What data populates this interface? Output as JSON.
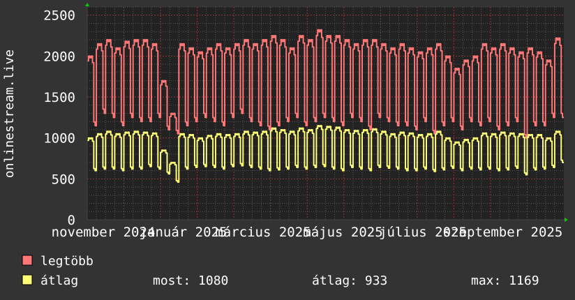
{
  "chart_data": {
    "type": "line",
    "ylabel": "onlinestream.live",
    "ylim": [
      0,
      2600
    ],
    "yticks": [
      0,
      500,
      1000,
      1500,
      2000,
      2500
    ],
    "x_tick_labels": [
      "november 2024",
      "január 2025",
      "március 2025",
      "május 2025",
      "július 2025",
      "szeptember 2025"
    ],
    "grid": true,
    "legend_placement": "bottom",
    "colors": {
      "background": "#333333",
      "plot": "#222222",
      "max": "#ff7777",
      "avg": "#ffff77",
      "minor_grid": "#555555",
      "major_grid": "#8a3a3a",
      "arrow": "#00cc00"
    },
    "series": [
      {
        "name": "legtöbb",
        "color": "#ff7777",
        "weekday_peaks": [
          2000,
          2150,
          2200,
          2100,
          2180,
          2200,
          2200,
          2150,
          1700,
          1300,
          2150,
          2100,
          2050,
          2100,
          2150,
          2100,
          2150,
          2200,
          2150,
          2200,
          2250,
          2200,
          2100,
          2250,
          2200,
          2320,
          2250,
          2250,
          2200,
          2150,
          2200,
          2200,
          2150,
          2100,
          2150,
          2100,
          2050,
          2100,
          2150,
          2000,
          1850,
          1950,
          2000,
          2150,
          2100,
          2150,
          2100,
          2050,
          2100,
          2050,
          1950,
          2220
        ],
        "weekend_lows": [
          1150,
          1300,
          1250,
          1150,
          1250,
          1200,
          1200,
          1250,
          1100,
          1050,
          1150,
          1200,
          1250,
          1200,
          1150,
          1250,
          1300,
          1200,
          1150,
          1100,
          1150,
          1200,
          1250,
          1150,
          1200,
          1250,
          1200,
          1150,
          1250,
          1200,
          1100,
          1250,
          1200,
          1150,
          1150,
          1100,
          1200,
          1050,
          1150,
          1200,
          1100,
          1200,
          1150,
          1200,
          1100,
          1150,
          1200,
          1000,
          1150,
          1150,
          1250,
          1250
        ]
      },
      {
        "name": "átlag",
        "color": "#ffff77",
        "weekday_peaks": [
          1000,
          1050,
          1080,
          1050,
          1070,
          1080,
          1070,
          1060,
          850,
          700,
          1050,
          1040,
          1000,
          1030,
          1050,
          1040,
          1050,
          1080,
          1070,
          1080,
          1120,
          1100,
          1080,
          1120,
          1100,
          1150,
          1140,
          1130,
          1100,
          1090,
          1100,
          1110,
          1080,
          1050,
          1070,
          1060,
          1040,
          1050,
          1080,
          1000,
          950,
          980,
          1000,
          1060,
          1050,
          1070,
          1060,
          1050,
          1040,
          1040,
          1000,
          1080
        ],
        "weekend_lows": [
          600,
          620,
          620,
          600,
          620,
          620,
          650,
          620,
          560,
          460,
          620,
          640,
          650,
          640,
          620,
          650,
          660,
          640,
          620,
          600,
          610,
          620,
          640,
          620,
          640,
          650,
          620,
          600,
          640,
          620,
          600,
          640,
          630,
          620,
          600,
          600,
          620,
          590,
          610,
          630,
          600,
          620,
          610,
          620,
          600,
          610,
          630,
          550,
          610,
          620,
          640,
          700
        ]
      }
    ]
  },
  "legend": {
    "max_label": "legtöbb",
    "avg_label": "átlag",
    "now": "most: 1080",
    "average": "átlag: 933",
    "max": "max: 1169"
  }
}
